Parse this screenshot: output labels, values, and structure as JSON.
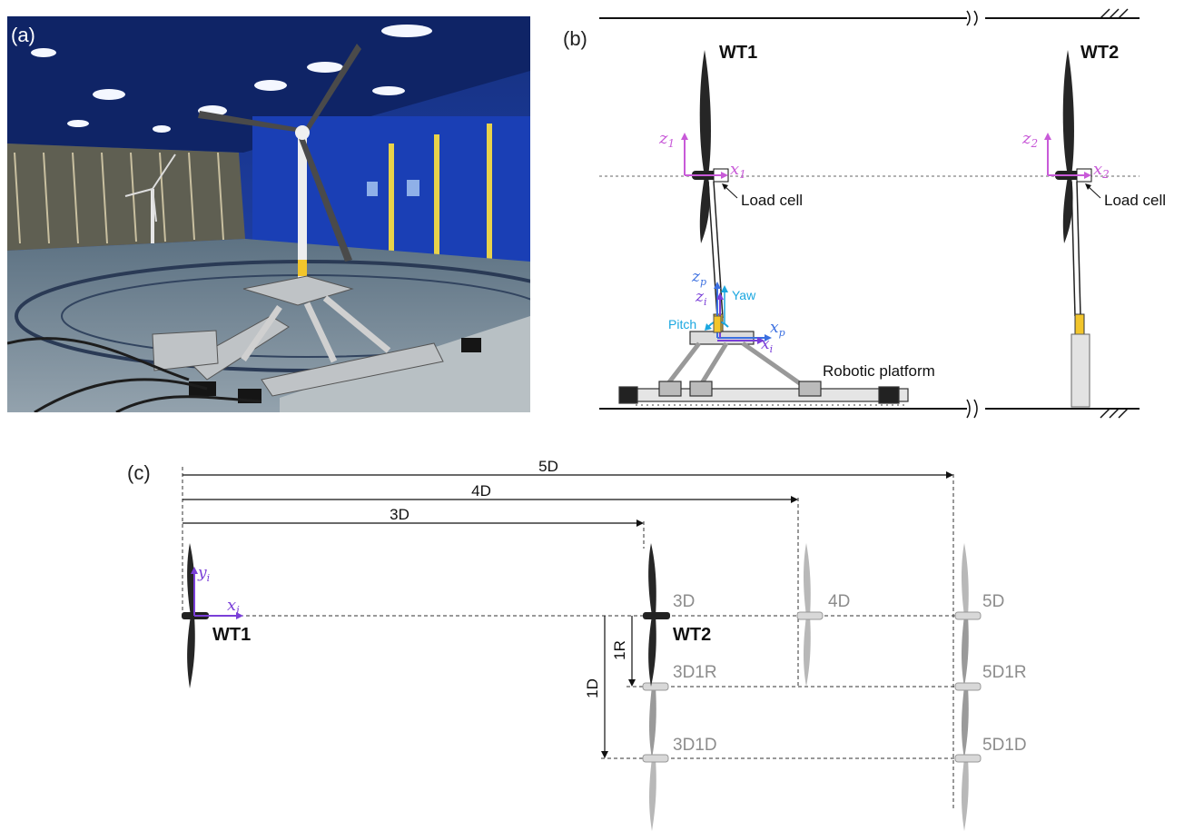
{
  "panel_labels": {
    "a": "(a)",
    "b": "(b)",
    "c": "(c)"
  },
  "colors": {
    "magenta": "#c85ad8",
    "violet": "#7a3fd8",
    "blue": "#3b6fe0",
    "cyan": "#1aa7e0",
    "blade_dark": "#262626",
    "ghost_grey": "#a8a8a8",
    "tunnel_blue": "#1c3fa8",
    "tower_yellow": "#f2c52b"
  },
  "panel_b": {
    "wt1_label": "WT1",
    "wt2_label": "WT2",
    "loadcell_label_1": "Load cell",
    "loadcell_label_2": "Load cell",
    "robotic_platform_label": "Robotic platform",
    "axes": {
      "z1": "z",
      "z1_sub": "1",
      "x1": "x",
      "x1_sub": "1",
      "z2": "z",
      "z2_sub": "2",
      "x2": "x",
      "x2_sub": "2",
      "zp": "z",
      "zp_sub": "p",
      "xp": "x",
      "xp_sub": "p",
      "zi": "z",
      "zi_sub": "i",
      "xi": "x",
      "xi_sub": "i"
    },
    "yaw_label": "Yaw",
    "pitch_label": "Pitch"
  },
  "panel_c": {
    "dim_5d": "5D",
    "dim_4d": "4D",
    "dim_3d": "3D",
    "dim_1r": "1R",
    "dim_1d": "1D",
    "wt1_label": "WT1",
    "wt2_label": "WT2",
    "yi": "y",
    "yi_sub": "i",
    "xi": "x",
    "xi_sub": "i",
    "positions": [
      "3D",
      "4D",
      "5D",
      "3D1R",
      "5D1R",
      "3D1D",
      "5D1D"
    ]
  }
}
